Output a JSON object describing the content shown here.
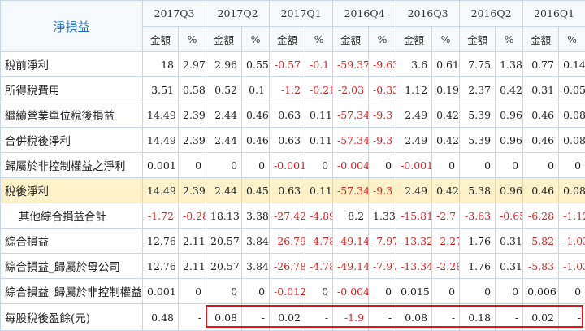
{
  "corner_label": "淨損益",
  "periods": [
    "2017Q3",
    "2017Q2",
    "2017Q1",
    "2016Q4",
    "2016Q3",
    "2016Q2",
    "2016Q1"
  ],
  "subheaders": {
    "amount": "金額",
    "pct": "%"
  },
  "rows": [
    {
      "label": "稅前淨利",
      "indent": false,
      "highlight": false,
      "cells": [
        "18",
        "2.97",
        "2.96",
        "0.55",
        "-0.57",
        "-0.1",
        "-59.37",
        "-9.63",
        "3.6",
        "0.61",
        "7.75",
        "1.38",
        "0.77",
        "0.14"
      ]
    },
    {
      "label": "所得稅費用",
      "indent": false,
      "highlight": false,
      "cells": [
        "3.51",
        "0.58",
        "0.52",
        "0.1",
        "-1.2",
        "-0.21",
        "-2.03",
        "-0.33",
        "1.12",
        "0.19",
        "2.37",
        "0.42",
        "0.31",
        "0.05"
      ]
    },
    {
      "label": "繼續營業單位稅後損益",
      "indent": false,
      "highlight": false,
      "cells": [
        "14.49",
        "2.39",
        "2.44",
        "0.46",
        "0.63",
        "0.11",
        "-57.34",
        "-9.3",
        "2.49",
        "0.42",
        "5.39",
        "0.96",
        "0.46",
        "0.08"
      ]
    },
    {
      "label": "合併稅後淨利",
      "indent": false,
      "highlight": false,
      "cells": [
        "14.49",
        "2.39",
        "2.44",
        "0.46",
        "0.63",
        "0.11",
        "-57.34",
        "-9.3",
        "2.49",
        "0.42",
        "5.39",
        "0.96",
        "0.46",
        "0.08"
      ]
    },
    {
      "label": "歸屬於非控制權益之淨利",
      "indent": false,
      "highlight": false,
      "cells": [
        "0.001",
        "0",
        "0",
        "0",
        "-0.001",
        "0",
        "-0.004",
        "0",
        "-0.001",
        "0",
        "0",
        "0",
        "0",
        "0"
      ]
    },
    {
      "label": "稅後淨利",
      "indent": false,
      "highlight": true,
      "cells": [
        "14.49",
        "2.39",
        "2.44",
        "0.45",
        "0.63",
        "0.11",
        "-57.34",
        "-9.3",
        "2.49",
        "0.42",
        "5.38",
        "0.96",
        "0.46",
        "0.08"
      ]
    },
    {
      "label": "其他綜合損益合計",
      "indent": true,
      "highlight": false,
      "cells": [
        "-1.72",
        "-0.28",
        "18.13",
        "3.38",
        "-27.42",
        "-4.89",
        "8.2",
        "1.33",
        "-15.81",
        "-2.7",
        "-3.63",
        "-0.65",
        "-6.28",
        "-1.12"
      ]
    },
    {
      "label": "綜合損益",
      "indent": false,
      "highlight": false,
      "cells": [
        "12.76",
        "2.11",
        "20.57",
        "3.84",
        "-26.79",
        "-4.78",
        "-49.14",
        "-7.97",
        "-13.32",
        "-2.27",
        "1.76",
        "0.31",
        "-5.82",
        "-1.03"
      ]
    },
    {
      "label": "綜合損益_歸屬於母公司",
      "indent": false,
      "highlight": false,
      "cells": [
        "12.76",
        "2.11",
        "20.57",
        "3.84",
        "-26.78",
        "-4.78",
        "-49.14",
        "-7.97",
        "-13.34",
        "-2.28",
        "1.76",
        "0.31",
        "-5.83",
        "-1.03"
      ]
    },
    {
      "label": "綜合損益_歸屬於非控制權益",
      "indent": false,
      "highlight": false,
      "cells": [
        "0.001",
        "0",
        "0",
        "0",
        "-0.012",
        "0",
        "-0.004",
        "0",
        "0.015",
        "0",
        "0",
        "0",
        "0.006",
        "0"
      ]
    },
    {
      "label": "每股稅後盈餘(元)",
      "indent": false,
      "highlight": false,
      "cells": [
        "0.48",
        "-",
        "0.08",
        "-",
        "0.02",
        "-",
        "-1.9",
        "-",
        "0.08",
        "-",
        "0.18",
        "-",
        "0.02",
        "-"
      ]
    }
  ],
  "colors": {
    "negative": "#e02020",
    "highlight_row": "#fcf1c8",
    "header_text": "#2c70c0",
    "grid": "#c8d7ea",
    "annotation_box": "#e8121b"
  }
}
